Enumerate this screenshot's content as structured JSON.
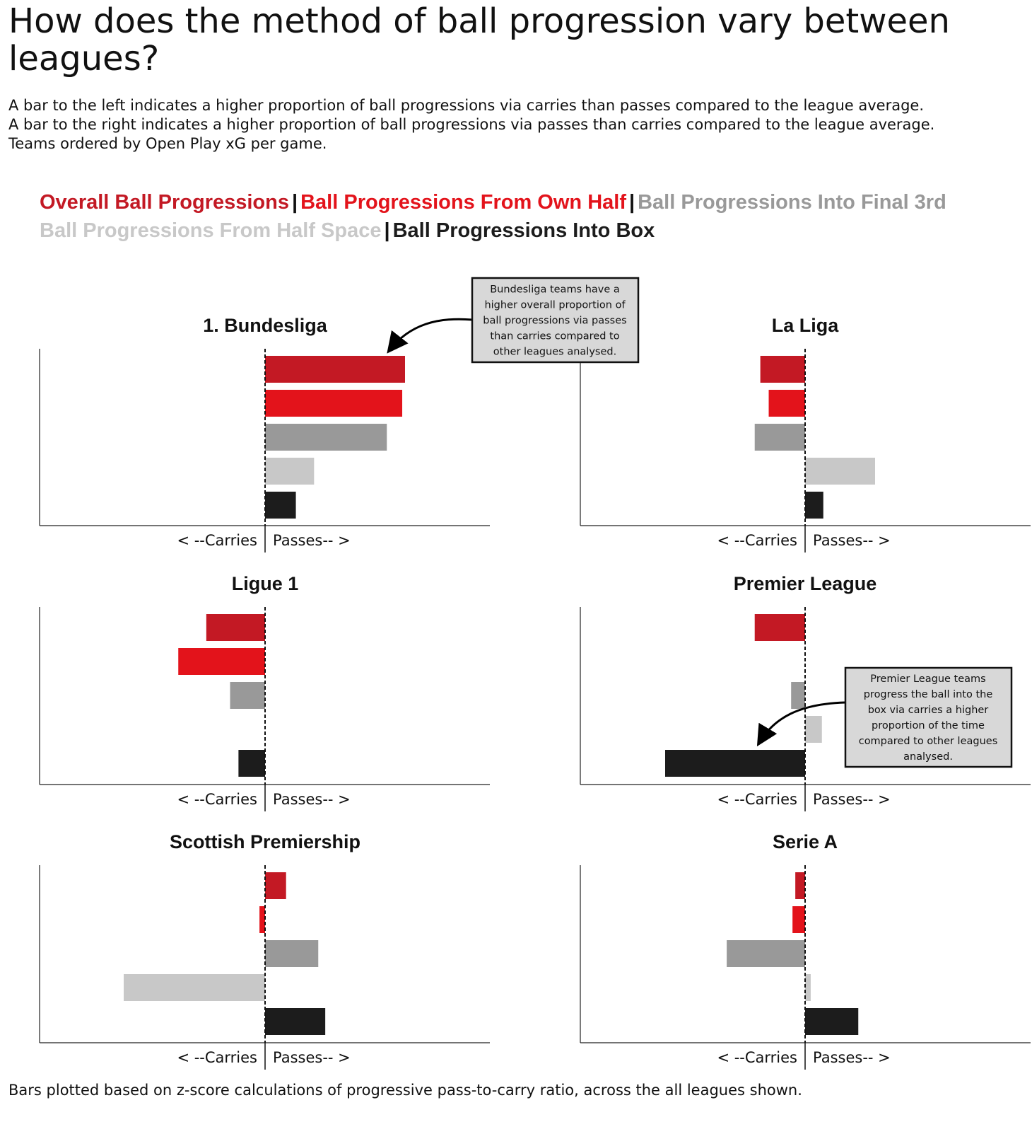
{
  "title": "How does the method of ball progression vary between leagues?",
  "subtitle_lines": [
    "A bar to the left indicates a higher proportion of ball progressions via carries than passes compared to the league average.",
    "A bar to the right indicates a higher proportion of ball progressions via passes than carries compared to the league average.",
    "Teams ordered by Open Play xG per game."
  ],
  "legend": {
    "items": [
      {
        "label": "Overall Ball Progressions",
        "color": "#c31924"
      },
      {
        "label": "Ball Progressions From Own Half",
        "color": "#e3131b"
      },
      {
        "label": "Ball Progressions Into Final 3rd",
        "color": "#999999"
      },
      {
        "label": "Ball Progressions From Half Space",
        "color": "#c8c8c8"
      },
      {
        "label": "Ball Progressions Into Box",
        "color": "#1c1c1c"
      }
    ],
    "separator": "|"
  },
  "chart_data": {
    "type": "bar",
    "orientation": "horizontal",
    "series_names": [
      "Overall Ball Progressions",
      "Ball Progressions From Own Half",
      "Ball Progressions Into Final 3rd",
      "Ball Progressions From Half Space",
      "Ball Progressions Into Box"
    ],
    "series_colors": [
      "#c31924",
      "#e3131b",
      "#999999",
      "#c8c8c8",
      "#1c1c1c"
    ],
    "xlim": [
      -1.6,
      1.6
    ],
    "x_axis_labels": {
      "left": "< --Carries",
      "right": "Passes-- >"
    },
    "panels": [
      {
        "league": "1. Bundesliga",
        "values": [
          1.0,
          0.98,
          0.87,
          0.35,
          0.22
        ]
      },
      {
        "league": "La Liga",
        "values": [
          -0.32,
          -0.26,
          -0.36,
          0.5,
          0.13
        ]
      },
      {
        "league": "Ligue 1",
        "values": [
          -0.42,
          -0.62,
          -0.25,
          0.0,
          -0.19
        ]
      },
      {
        "league": "Premier League",
        "values": [
          -0.36,
          0.0,
          -0.1,
          0.12,
          -1.0
        ]
      },
      {
        "league": "Scottish Premiership",
        "values": [
          0.15,
          -0.04,
          0.38,
          -1.01,
          0.43
        ]
      },
      {
        "league": "Serie A",
        "values": [
          -0.07,
          -0.09,
          -0.56,
          0.04,
          0.38
        ]
      }
    ],
    "annotations": [
      {
        "panel": "1. Bundesliga",
        "lines": [
          "Bundesliga teams have a",
          "higher overall proportion of",
          "ball progressions via passes",
          "than carries compared to",
          "other leagues analysed."
        ]
      },
      {
        "panel": "Premier League",
        "lines": [
          "Premier League teams",
          "progress the ball into the",
          "box via carries a higher",
          "proportion of the time",
          "compared to other leagues",
          "analysed."
        ]
      }
    ]
  },
  "footer": "Bars plotted based on z-score calculations of progressive pass-to-carry ratio, across the all leagues shown."
}
